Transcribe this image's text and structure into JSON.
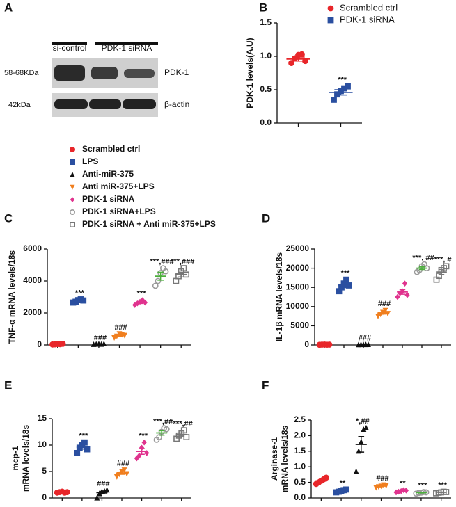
{
  "blot": {
    "label": "A",
    "lanes": [
      "si-control",
      "PDK-1 siRNA"
    ],
    "rows": [
      {
        "size": "58-68KDa",
        "protein": "PDK-1"
      },
      {
        "size": "42kDa",
        "protein": "β-actin"
      }
    ]
  },
  "legend": {
    "entries": [
      {
        "name": "Scrambled ctrl",
        "color": "#e8262a",
        "marker": "circle"
      },
      {
        "name": "LPS",
        "color": "#2a4fa0",
        "marker": "square"
      },
      {
        "name": "Anti-miR-375",
        "color": "#111111",
        "marker": "triangle-up"
      },
      {
        "name": "Anti miR-375+LPS",
        "color": "#f07f1f",
        "marker": "triangle-down"
      },
      {
        "name": "PDK-1 siRNA",
        "color": "#e0338e",
        "marker": "diamond"
      },
      {
        "name": "PDK-1 siRNA+LPS",
        "color": "#9a9a9a",
        "line_color": "#4caf3c",
        "marker": "open-circle"
      },
      {
        "name": "PDK-1 siRNA + Anti miR-375+LPS",
        "color": "#777777",
        "marker": "open-square"
      }
    ]
  },
  "chart_data": [
    {
      "type": "dot",
      "label": "B",
      "y_label": "PDK-1 levels(A.U)",
      "ylim": [
        0,
        1.5
      ],
      "yticks": [
        {
          "value": 0,
          "label": "0.0"
        },
        {
          "value": 0.5,
          "label": "0.5"
        },
        {
          "value": 1,
          "label": "1.0"
        },
        {
          "value": 1.5,
          "label": "1.5"
        }
      ],
      "series": [
        {
          "name": "Scrambled ctrl",
          "color": "#e8262a",
          "marker": "circle",
          "values": [
            0.9,
            0.97,
            1.02,
            1.03,
            0.93
          ],
          "mean": 0.96,
          "sem": 0.03
        },
        {
          "name": "PDK-1 siRNA",
          "color": "#2a4fa0",
          "marker": "square",
          "values": [
            0.35,
            0.43,
            0.48,
            0.52,
            0.55
          ],
          "mean": 0.46,
          "sem": 0.04,
          "annotation": "***"
        }
      ]
    },
    {
      "type": "dot",
      "label": "C",
      "y_label": "TNF-α mRNA levels/18s",
      "ylim": [
        0,
        6000
      ],
      "yticks": [
        0,
        2000,
        4000,
        6000
      ],
      "series": [
        {
          "values": [
            30,
            40,
            60,
            50,
            70
          ],
          "mean": 50,
          "sem": 10
        },
        {
          "values": [
            2650,
            2700,
            2800,
            2850,
            2780
          ],
          "mean": 2760,
          "sem": 40,
          "annotation": "***"
        },
        {
          "values": [
            30,
            50,
            60,
            40,
            70
          ],
          "mean": 50,
          "sem": 10,
          "annotation": "###"
        },
        {
          "values": [
            450,
            550,
            700,
            650,
            600
          ],
          "mean": 600,
          "sem": 50,
          "annotation": "###"
        },
        {
          "values": [
            2500,
            2600,
            2700,
            2800,
            2650
          ],
          "mean": 2650,
          "sem": 60,
          "annotation": "***"
        },
        {
          "values": [
            3700,
            4000,
            4500,
            4800,
            4600
          ],
          "mean": 4300,
          "sem": 250,
          "annotation": "***,###"
        },
        {
          "values": [
            4000,
            4300,
            4600,
            4800,
            4400
          ],
          "mean": 4400,
          "sem": 150,
          "annotation": "***,###"
        }
      ]
    },
    {
      "type": "dot",
      "label": "D",
      "y_label": "IL-1β mRNA levels/18s",
      "ylim": [
        0,
        25000
      ],
      "yticks": [
        0,
        5000,
        10000,
        15000,
        20000,
        25000
      ],
      "series": [
        {
          "values": [
            50,
            80,
            100,
            60,
            90
          ],
          "mean": 80,
          "sem": 10
        },
        {
          "values": [
            14000,
            15000,
            16000,
            17000,
            15500
          ],
          "mean": 15500,
          "sem": 500,
          "annotation": "***"
        },
        {
          "values": [
            60,
            90,
            110,
            80,
            100
          ],
          "mean": 90,
          "sem": 10,
          "annotation": "###"
        },
        {
          "values": [
            7500,
            8000,
            8500,
            9000,
            8200
          ],
          "mean": 8300,
          "sem": 250,
          "annotation": "###"
        },
        {
          "values": [
            12500,
            13500,
            14000,
            16000,
            13000
          ],
          "mean": 13800,
          "sem": 600
        },
        {
          "values": [
            19000,
            19500,
            20500,
            21000,
            20000
          ],
          "mean": 20000,
          "sem": 350,
          "annotation": "***, ##"
        },
        {
          "values": [
            17000,
            18000,
            19500,
            20000,
            20500
          ],
          "mean": 19000,
          "sem": 650,
          "annotation": "***, #"
        }
      ]
    },
    {
      "type": "dot",
      "label": "E",
      "y_label": [
        "mcp-1",
        "mRNA levels/18s"
      ],
      "ylim": [
        0,
        15
      ],
      "yticks": [
        0,
        5,
        10,
        15
      ],
      "series": [
        {
          "values": [
            1.0,
            1.1,
            1.2,
            1.0,
            1.1
          ],
          "mean": 1.1,
          "sem": 0.04
        },
        {
          "values": [
            8.5,
            9.5,
            10,
            10.5,
            9.2
          ],
          "mean": 9.6,
          "sem": 0.35,
          "annotation": "***"
        },
        {
          "values": [
            0,
            0.8,
            1.2,
            1.3,
            1.5
          ],
          "mean": 1.0,
          "sem": 0.25,
          "annotation": "###"
        },
        {
          "values": [
            4,
            4.5,
            5,
            5.3,
            4.6
          ],
          "mean": 4.7,
          "sem": 0.22,
          "annotation": "###"
        },
        {
          "values": [
            7.5,
            8,
            9.5,
            10.5,
            8.5
          ],
          "mean": 8.8,
          "sem": 0.55,
          "annotation": "***"
        },
        {
          "values": [
            11,
            11.5,
            12.5,
            13.2,
            13
          ],
          "mean": 12.3,
          "sem": 0.42,
          "annotation": "***,##"
        },
        {
          "values": [
            11.2,
            11.8,
            12.2,
            12.8,
            11.5
          ],
          "mean": 12,
          "sem": 0.3,
          "annotation": "***,##"
        }
      ]
    },
    {
      "type": "dot",
      "label": "F",
      "y_label": [
        "Arginase-1",
        "mRNA levels/18s"
      ],
      "ylim": [
        0,
        2.5
      ],
      "yticks": [
        {
          "value": 0,
          "label": "0.0"
        },
        {
          "value": 0.5,
          "label": "0.5"
        },
        {
          "value": 1,
          "label": "1.0"
        },
        {
          "value": 1.5,
          "label": "1.5"
        },
        {
          "value": 2,
          "label": "2.0"
        },
        {
          "value": 2.5,
          "label": "2.5"
        }
      ],
      "series": [
        {
          "values": [
            0.45,
            0.5,
            0.55,
            0.6,
            0.65
          ],
          "mean": 0.55,
          "sem": 0.04
        },
        {
          "values": [
            0.18,
            0.2,
            0.22,
            0.25,
            0.27
          ],
          "mean": 0.22,
          "sem": 0.02,
          "annotation": "**"
        },
        {
          "values": [
            0.85,
            1.5,
            1.8,
            2.2,
            2.25
          ],
          "mean": 1.72,
          "sem": 0.25,
          "annotation": "*,##"
        },
        {
          "values": [
            0.33,
            0.36,
            0.38,
            0.42,
            0.4
          ],
          "mean": 0.38,
          "sem": 0.02,
          "annotation": "###"
        },
        {
          "values": [
            0.18,
            0.2,
            0.22,
            0.25,
            0.24
          ],
          "mean": 0.22,
          "sem": 0.02,
          "annotation": "**"
        },
        {
          "values": [
            0.14,
            0.16,
            0.17,
            0.19,
            0.18
          ],
          "mean": 0.17,
          "sem": 0.01,
          "annotation": "***"
        },
        {
          "values": [
            0.15,
            0.17,
            0.18,
            0.2,
            0.19
          ],
          "mean": 0.18,
          "sem": 0.01,
          "annotation": "***"
        }
      ]
    }
  ]
}
